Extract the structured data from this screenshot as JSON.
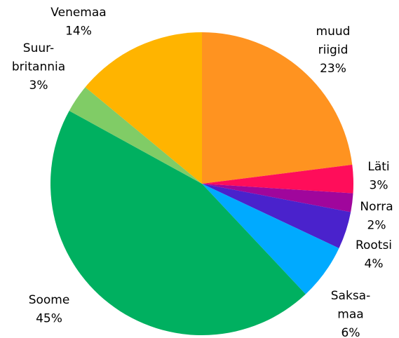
{
  "chart_data": {
    "type": "pie",
    "categories": [
      [
        "muud",
        "riigid"
      ],
      [
        "Läti"
      ],
      [
        "Norra"
      ],
      [
        "Rootsi"
      ],
      [
        "Saksa-",
        "maa"
      ],
      [
        "Soome"
      ],
      [
        "Suur-",
        "britannia"
      ],
      [
        "Venemaa"
      ]
    ],
    "values": [
      23,
      3,
      2,
      4,
      6,
      45,
      3,
      14
    ],
    "value_labels": [
      "23%",
      "3%",
      "2%",
      "4%",
      "6%",
      "45%",
      "3%",
      "14%"
    ],
    "colors": [
      "#ff9320",
      "#ff0d5a",
      "#a0069c",
      "#4a22cc",
      "#00aaff",
      "#00b060",
      "#80cc66",
      "#ffb400"
    ]
  }
}
